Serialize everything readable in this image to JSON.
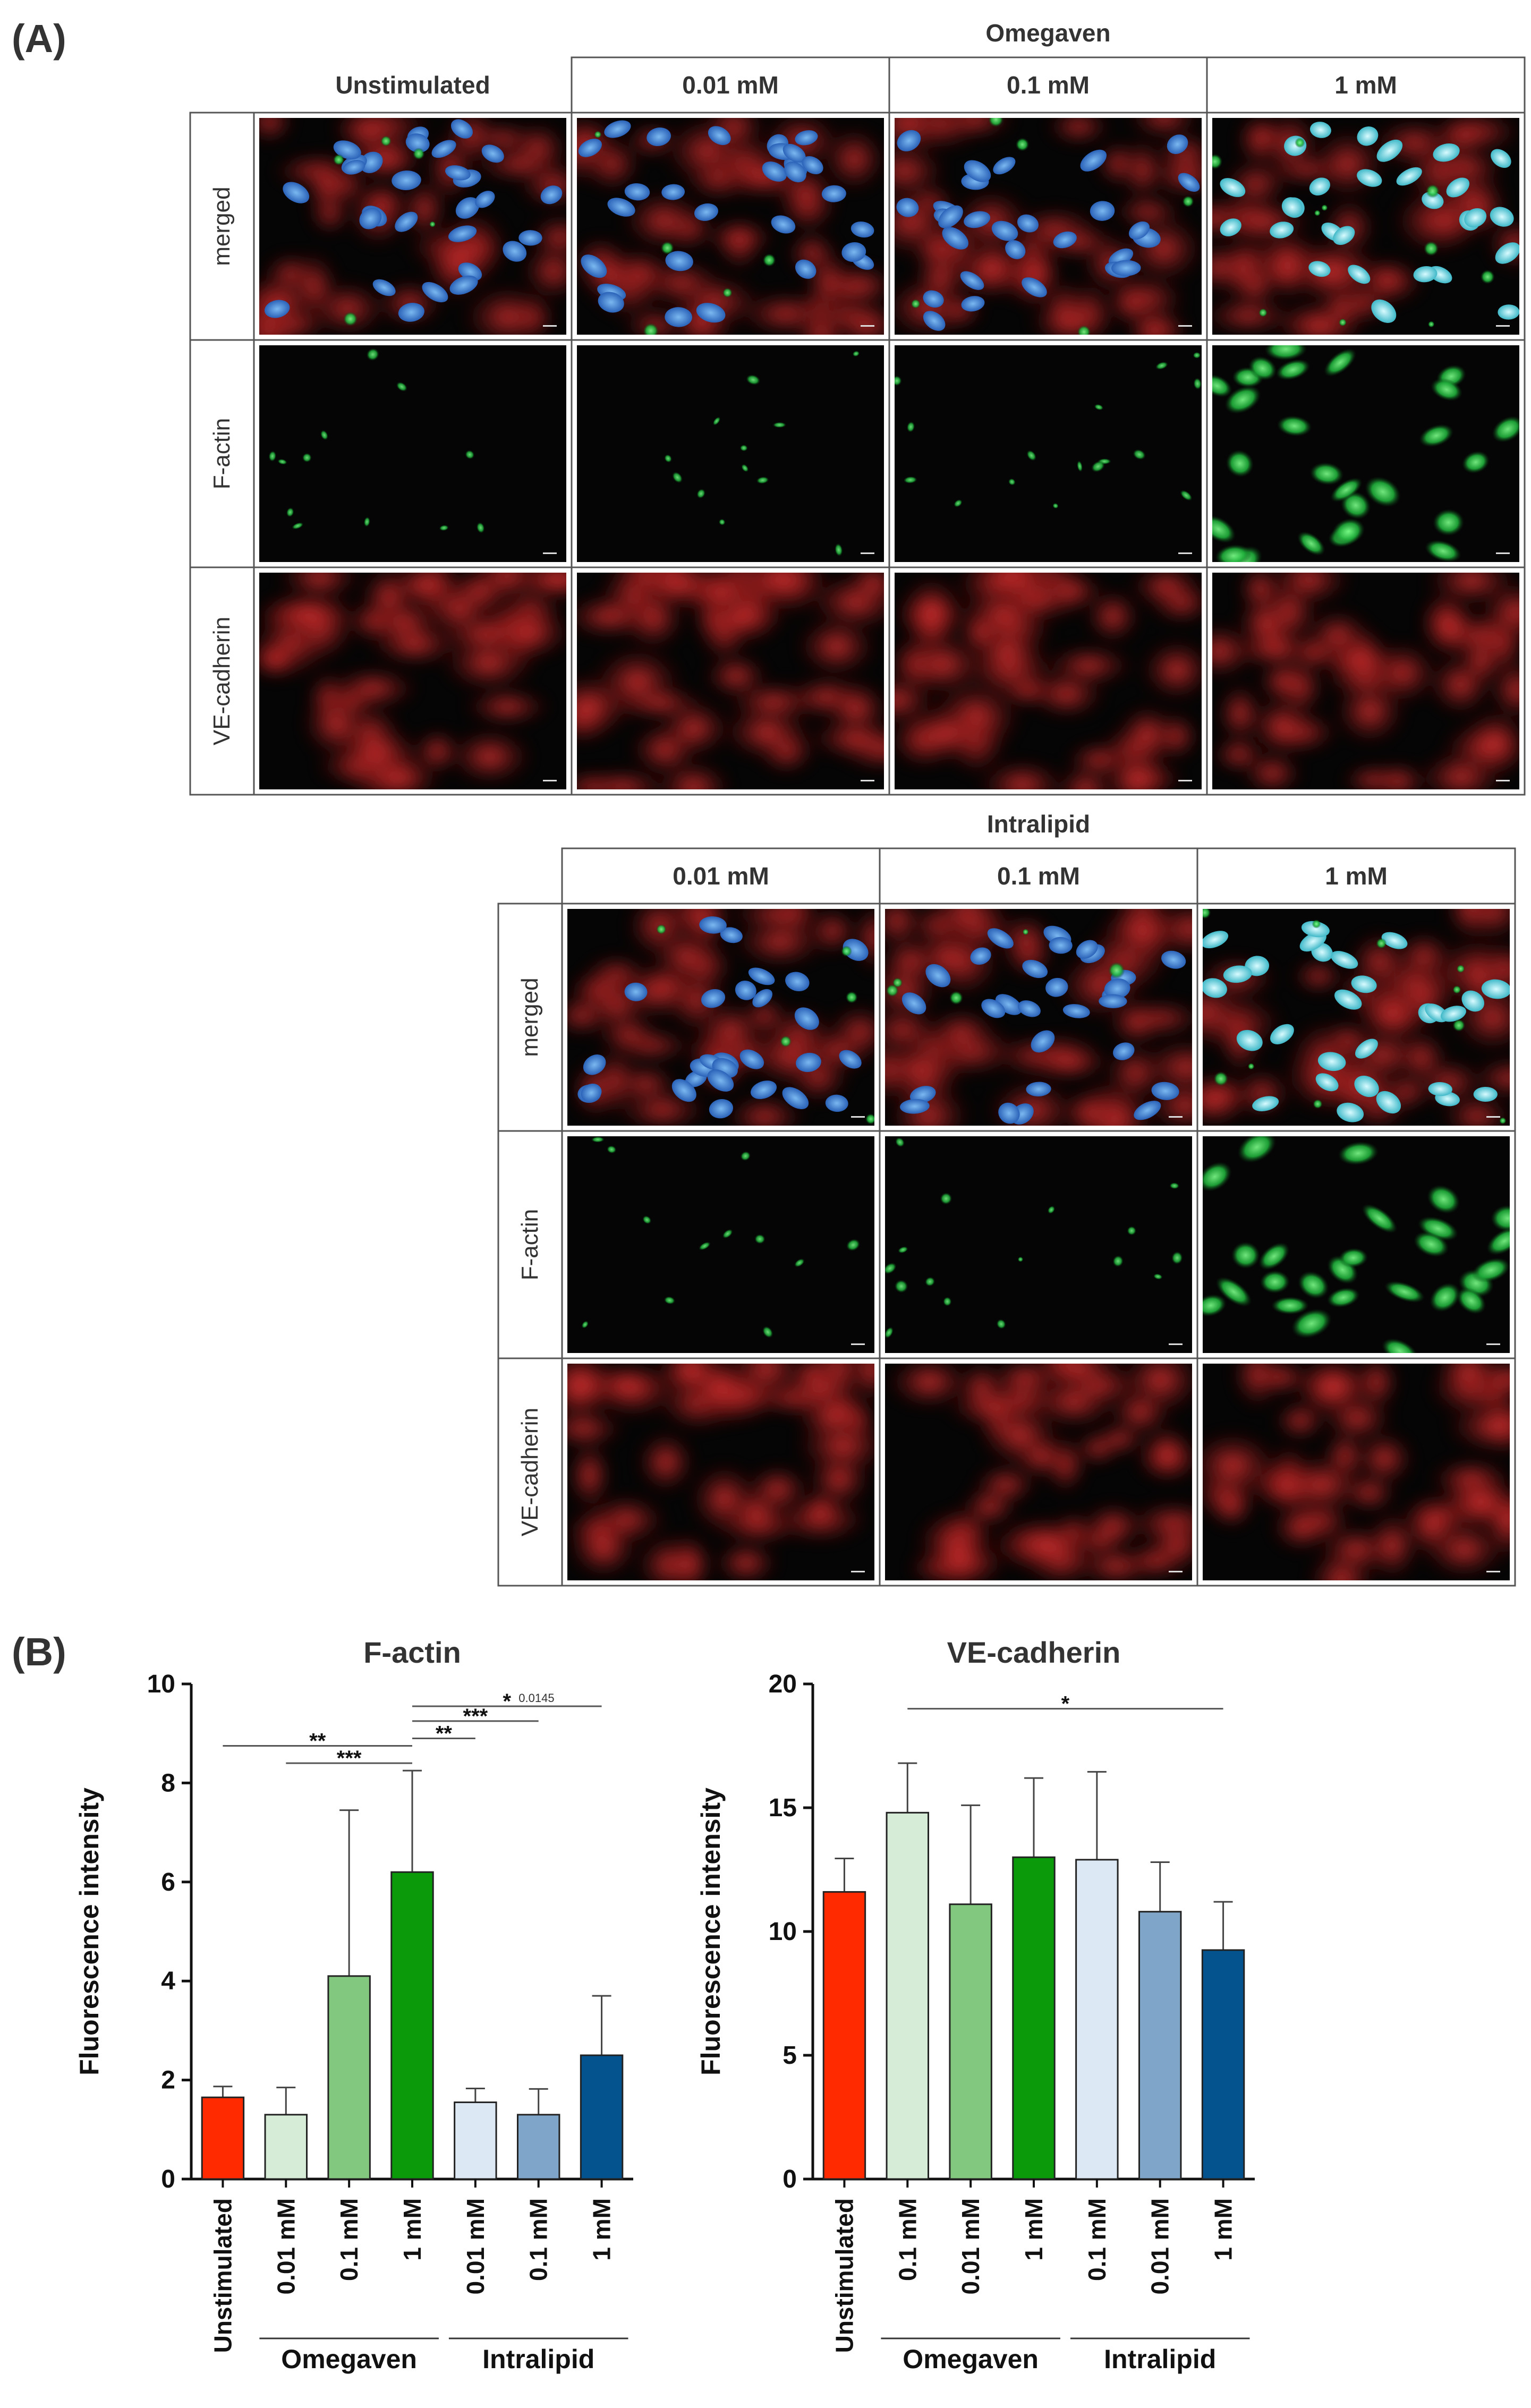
{
  "panel_a": {
    "label": "(A)",
    "omegaven": {
      "group_title": "Omegaven",
      "control_header": "Unstimulated",
      "headers": [
        "0.01 mM",
        "0.1 mM",
        "1 mM"
      ],
      "rows": [
        "merged",
        "F-actin",
        "VE-cadherin"
      ]
    },
    "intralipid": {
      "group_title": "Intralipid",
      "headers": [
        "0.01 mM",
        "0.1 mM",
        "1 mM"
      ],
      "rows": [
        "merged",
        "F-actin",
        "VE-cadherin"
      ]
    },
    "colors": {
      "nuclei": "#3a7fd0",
      "f_actin": "#1fae3a",
      "ve_cadherin": "#d21d1d"
    }
  },
  "panel_b": {
    "label": "(B)"
  },
  "chart_data": [
    {
      "type": "bar",
      "title": "F-actin",
      "ylabel": "Fluorescence intensity",
      "ylim": [
        0,
        10
      ],
      "yticks": [
        0,
        2,
        4,
        6,
        8,
        10
      ],
      "categories": [
        "Unstimulated",
        "0.01 mM",
        "0.1 mM",
        "1 mM",
        "0.01 mM",
        "0.1 mM",
        "1 mM"
      ],
      "values": [
        1.65,
        1.3,
        4.1,
        6.2,
        1.55,
        1.3,
        2.5
      ],
      "errors": [
        0.22,
        0.55,
        3.35,
        2.05,
        0.28,
        0.52,
        1.2
      ],
      "colors": [
        "#ff2a00",
        "#d6ecd6",
        "#82c87e",
        "#0a9a0a",
        "#dce8f4",
        "#7fa6c8",
        "#04538e"
      ],
      "groups": [
        {
          "label": "Omegaven",
          "from": 1,
          "to": 3
        },
        {
          "label": "Intralipid",
          "from": 4,
          "to": 6
        }
      ],
      "significance": [
        {
          "from": 0,
          "to": 3,
          "label": "**",
          "y": 8.75
        },
        {
          "from": 1,
          "to": 3,
          "label": "***",
          "y": 8.4
        },
        {
          "from": 3,
          "to": 6,
          "label": "*",
          "note": "0.0145",
          "y": 9.55
        },
        {
          "from": 3,
          "to": 5,
          "label": "***",
          "y": 9.25
        },
        {
          "from": 3,
          "to": 4,
          "label": "**",
          "y": 8.9
        }
      ]
    },
    {
      "type": "bar",
      "title": "VE-cadherin",
      "ylabel": "Fluorescence intensity",
      "ylim": [
        0,
        20
      ],
      "yticks": [
        0,
        5,
        10,
        15,
        20
      ],
      "categories": [
        "Unstimulated",
        "0.1 mM",
        "0.01 mM",
        "1 mM",
        "0.1 mM",
        "0.01 mM",
        "1 mM"
      ],
      "values": [
        11.6,
        14.8,
        11.1,
        13.0,
        12.9,
        10.8,
        9.25
      ],
      "errors": [
        1.35,
        2.0,
        4.0,
        3.2,
        3.55,
        2.0,
        1.95
      ],
      "colors": [
        "#ff2a00",
        "#d6ecd6",
        "#82c87e",
        "#0a9a0a",
        "#dce8f4",
        "#7fa6c8",
        "#04538e"
      ],
      "groups": [
        {
          "label": "Omegaven",
          "from": 1,
          "to": 3
        },
        {
          "label": "Intralipid",
          "from": 4,
          "to": 6
        }
      ],
      "significance": [
        {
          "from": 1,
          "to": 6,
          "label": "*",
          "y": 19.0
        }
      ]
    }
  ]
}
